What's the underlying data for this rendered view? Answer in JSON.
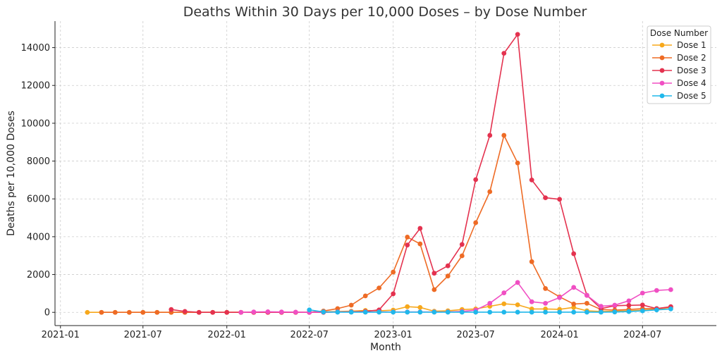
{
  "chart_data": {
    "type": "line",
    "title": "Deaths Within 30 Days per 10,000 Doses – by Dose Number",
    "xlabel": "Month",
    "ylabel": "Deaths per 10,000 Doses",
    "x_ticks": [
      "2021-01",
      "2021-07",
      "2022-01",
      "2022-07",
      "2023-01",
      "2023-07",
      "2024-01",
      "2024-07"
    ],
    "y_ticks": [
      0,
      2000,
      4000,
      6000,
      8000,
      10000,
      12000,
      14000
    ],
    "ylim": [
      -700,
      15400
    ],
    "xlim": [
      "2020-12-20",
      "2024-12-10"
    ],
    "grid": true,
    "legend": {
      "title": "Dose Number",
      "position": "top-right"
    },
    "series": [
      {
        "name": "Dose 1",
        "color": "#F7A81B",
        "points": [
          [
            "2021-03",
            0
          ],
          [
            "2021-04",
            0
          ],
          [
            "2021-05",
            0
          ],
          [
            "2021-06",
            0
          ],
          [
            "2021-07",
            0
          ],
          [
            "2021-08",
            0
          ],
          [
            "2021-09",
            0
          ],
          [
            "2021-10",
            0
          ],
          [
            "2021-11",
            0
          ],
          [
            "2021-12",
            0
          ],
          [
            "2022-01",
            0
          ],
          [
            "2022-02",
            0
          ],
          [
            "2022-03",
            0
          ],
          [
            "2022-04",
            0
          ],
          [
            "2022-05",
            0
          ],
          [
            "2022-06",
            0
          ],
          [
            "2022-07",
            0
          ],
          [
            "2022-08",
            30
          ],
          [
            "2022-09",
            40
          ],
          [
            "2022-10",
            60
          ],
          [
            "2022-11",
            100
          ],
          [
            "2022-12",
            80
          ],
          [
            "2023-01",
            120
          ],
          [
            "2023-02",
            300
          ],
          [
            "2023-03",
            260
          ],
          [
            "2023-04",
            60
          ],
          [
            "2023-05",
            80
          ],
          [
            "2023-06",
            150
          ],
          [
            "2023-07",
            180
          ],
          [
            "2023-08",
            320
          ],
          [
            "2023-09",
            450
          ],
          [
            "2023-10",
            400
          ],
          [
            "2023-11",
            180
          ],
          [
            "2023-12",
            180
          ],
          [
            "2024-01",
            160
          ],
          [
            "2024-02",
            260
          ],
          [
            "2024-03",
            80
          ],
          [
            "2024-04",
            40
          ],
          [
            "2024-05",
            60
          ],
          [
            "2024-06",
            80
          ],
          [
            "2024-07",
            120
          ],
          [
            "2024-08",
            160
          ],
          [
            "2024-09",
            200
          ]
        ]
      },
      {
        "name": "Dose 2",
        "color": "#EE6B25",
        "points": [
          [
            "2021-04",
            0
          ],
          [
            "2021-05",
            0
          ],
          [
            "2021-06",
            0
          ],
          [
            "2021-07",
            0
          ],
          [
            "2021-08",
            0
          ],
          [
            "2021-09",
            0
          ],
          [
            "2021-10",
            0
          ],
          [
            "2021-11",
            0
          ],
          [
            "2021-12",
            0
          ],
          [
            "2022-01",
            0
          ],
          [
            "2022-02",
            0
          ],
          [
            "2022-03",
            0
          ],
          [
            "2022-04",
            0
          ],
          [
            "2022-05",
            0
          ],
          [
            "2022-06",
            0
          ],
          [
            "2022-07",
            0
          ],
          [
            "2022-08",
            70
          ],
          [
            "2022-09",
            200
          ],
          [
            "2022-10",
            380
          ],
          [
            "2022-11",
            870
          ],
          [
            "2022-12",
            1290
          ],
          [
            "2023-01",
            2130
          ],
          [
            "2023-02",
            3980
          ],
          [
            "2023-03",
            3620
          ],
          [
            "2023-04",
            1200
          ],
          [
            "2023-05",
            1920
          ],
          [
            "2023-06",
            2990
          ],
          [
            "2023-07",
            4740
          ],
          [
            "2023-08",
            6380
          ],
          [
            "2023-09",
            9360
          ],
          [
            "2023-10",
            7900
          ],
          [
            "2023-11",
            2680
          ],
          [
            "2023-12",
            1260
          ],
          [
            "2024-01",
            820
          ],
          [
            "2024-02",
            440
          ],
          [
            "2024-03",
            480
          ],
          [
            "2024-04",
            150
          ],
          [
            "2024-05",
            120
          ],
          [
            "2024-06",
            150
          ],
          [
            "2024-07",
            200
          ],
          [
            "2024-08",
            200
          ],
          [
            "2024-09",
            280
          ]
        ]
      },
      {
        "name": "Dose 3",
        "color": "#E4324F",
        "points": [
          [
            "2021-09",
            150
          ],
          [
            "2021-10",
            50
          ],
          [
            "2021-11",
            0
          ],
          [
            "2021-12",
            0
          ],
          [
            "2022-01",
            0
          ],
          [
            "2022-02",
            0
          ],
          [
            "2022-03",
            0
          ],
          [
            "2022-04",
            0
          ],
          [
            "2022-05",
            0
          ],
          [
            "2022-06",
            0
          ],
          [
            "2022-07",
            0
          ],
          [
            "2022-08",
            0
          ],
          [
            "2022-09",
            20
          ],
          [
            "2022-10",
            30
          ],
          [
            "2022-11",
            50
          ],
          [
            "2022-12",
            130
          ],
          [
            "2023-01",
            980
          ],
          [
            "2023-02",
            3560
          ],
          [
            "2023-03",
            4440
          ],
          [
            "2023-04",
            2070
          ],
          [
            "2023-05",
            2460
          ],
          [
            "2023-06",
            3590
          ],
          [
            "2023-07",
            7020
          ],
          [
            "2023-08",
            9360
          ],
          [
            "2023-09",
            13700
          ],
          [
            "2023-10",
            14700
          ],
          [
            "2023-11",
            7000
          ],
          [
            "2023-12",
            6060
          ],
          [
            "2024-01",
            5980
          ],
          [
            "2024-02",
            3100
          ],
          [
            "2024-03",
            900
          ],
          [
            "2024-04",
            200
          ],
          [
            "2024-05",
            350
          ],
          [
            "2024-06",
            370
          ],
          [
            "2024-07",
            390
          ],
          [
            "2024-08",
            200
          ],
          [
            "2024-09",
            300
          ]
        ]
      },
      {
        "name": "Dose 4",
        "color": "#F04FC3",
        "points": [
          [
            "2022-02",
            0
          ],
          [
            "2022-03",
            20
          ],
          [
            "2022-04",
            30
          ],
          [
            "2022-05",
            20
          ],
          [
            "2022-06",
            10
          ],
          [
            "2022-07",
            0
          ],
          [
            "2022-08",
            20
          ],
          [
            "2022-09",
            20
          ],
          [
            "2022-10",
            20
          ],
          [
            "2022-11",
            20
          ],
          [
            "2022-12",
            20
          ],
          [
            "2023-01",
            20
          ],
          [
            "2023-02",
            20
          ],
          [
            "2023-03",
            20
          ],
          [
            "2023-04",
            20
          ],
          [
            "2023-05",
            20
          ],
          [
            "2023-06",
            50
          ],
          [
            "2023-07",
            120
          ],
          [
            "2023-08",
            480
          ],
          [
            "2023-09",
            1030
          ],
          [
            "2023-10",
            1580
          ],
          [
            "2023-11",
            560
          ],
          [
            "2023-12",
            480
          ],
          [
            "2024-01",
            780
          ],
          [
            "2024-02",
            1320
          ],
          [
            "2024-03",
            900
          ],
          [
            "2024-04",
            320
          ],
          [
            "2024-05",
            380
          ],
          [
            "2024-06",
            610
          ],
          [
            "2024-07",
            1020
          ],
          [
            "2024-08",
            1160
          ],
          [
            "2024-09",
            1200
          ]
        ]
      },
      {
        "name": "Dose 5",
        "color": "#20B8EB",
        "points": [
          [
            "2022-07",
            130
          ],
          [
            "2022-08",
            20
          ],
          [
            "2022-09",
            10
          ],
          [
            "2022-10",
            10
          ],
          [
            "2022-11",
            10
          ],
          [
            "2022-12",
            10
          ],
          [
            "2023-01",
            10
          ],
          [
            "2023-02",
            10
          ],
          [
            "2023-03",
            10
          ],
          [
            "2023-04",
            10
          ],
          [
            "2023-05",
            10
          ],
          [
            "2023-06",
            10
          ],
          [
            "2023-07",
            10
          ],
          [
            "2023-08",
            10
          ],
          [
            "2023-09",
            10
          ],
          [
            "2023-10",
            10
          ],
          [
            "2023-11",
            10
          ],
          [
            "2023-12",
            10
          ],
          [
            "2024-01",
            10
          ],
          [
            "2024-02",
            10
          ],
          [
            "2024-03",
            10
          ],
          [
            "2024-04",
            10
          ],
          [
            "2024-05",
            20
          ],
          [
            "2024-06",
            40
          ],
          [
            "2024-07",
            80
          ],
          [
            "2024-08",
            130
          ],
          [
            "2024-09",
            180
          ]
        ]
      }
    ]
  }
}
